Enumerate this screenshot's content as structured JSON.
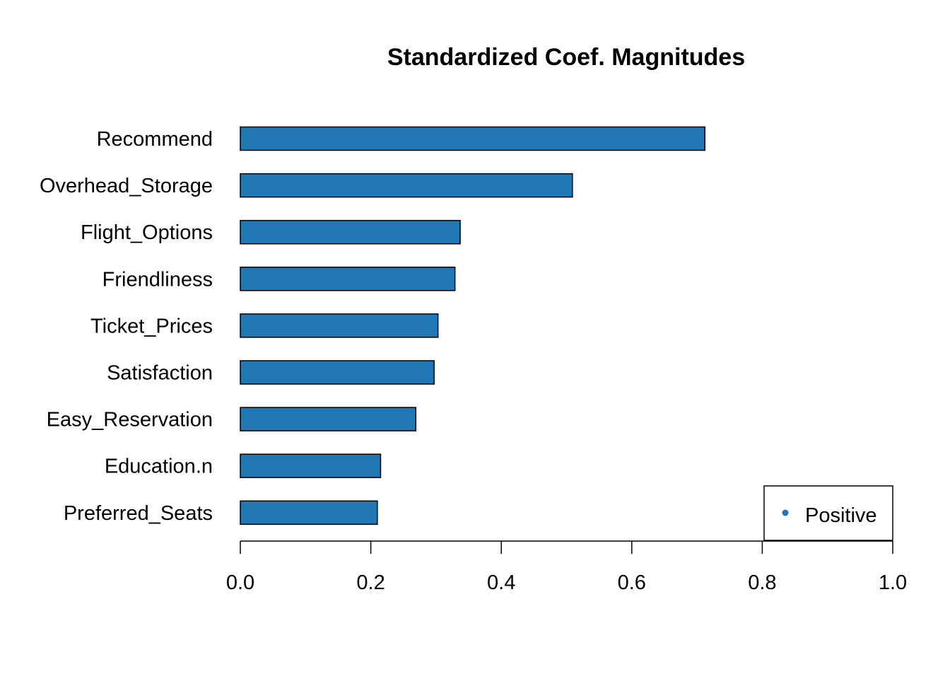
{
  "chart_data": {
    "type": "bar",
    "orientation": "horizontal",
    "title": "Standardized Coef. Magnitudes",
    "xlabel": "",
    "ylabel": "",
    "categories": [
      "Recommend",
      "Overhead_Storage",
      "Flight_Options",
      "Friendliness",
      "Ticket_Prices",
      "Satisfaction",
      "Easy_Reservation",
      "Education.n",
      "Preferred_Seats"
    ],
    "series": [
      {
        "name": "Positive",
        "values": [
          0.712,
          0.509,
          0.337,
          0.329,
          0.303,
          0.297,
          0.269,
          0.215,
          0.21
        ],
        "color": "#2077b4"
      }
    ],
    "xlim": [
      0,
      1
    ],
    "xticks": [
      "0.0",
      "0.2",
      "0.4",
      "0.6",
      "0.8",
      "1.0"
    ],
    "grid": false,
    "legend": {
      "position": "bottom-right",
      "entries": [
        {
          "label": "Positive",
          "color": "#2077b4"
        }
      ]
    }
  }
}
